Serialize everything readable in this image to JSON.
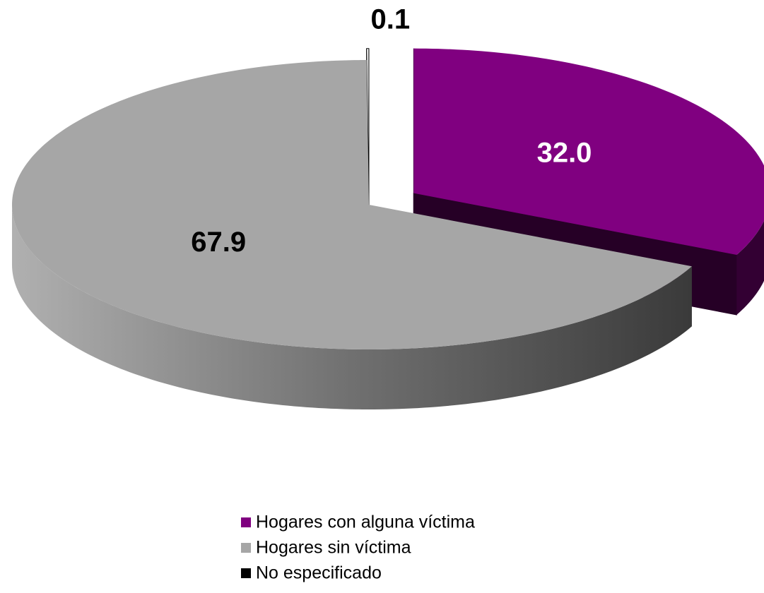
{
  "chart_data": {
    "type": "pie",
    "categories": [
      "Hogares con alguna víctima",
      "Hogares sin víctima",
      "No especificado"
    ],
    "values": [
      32.0,
      67.9,
      0.1
    ],
    "value_labels": [
      "32.0",
      "67.9",
      "0.1"
    ],
    "colors": [
      "#800080",
      "#a6a6a6",
      "#000000"
    ],
    "legend": "bottom"
  }
}
